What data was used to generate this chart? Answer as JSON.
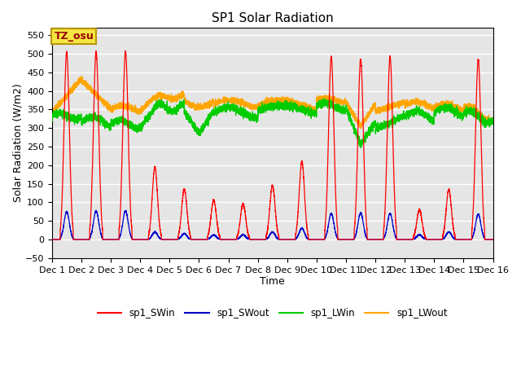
{
  "title": "SP1 Solar Radiation",
  "xlabel": "Time",
  "ylabel": "Solar Radiation (W/m2)",
  "ylim": [
    -50,
    570
  ],
  "xlim": [
    0,
    15
  ],
  "xtick_labels": [
    "Dec 1",
    "Dec 2",
    "Dec 3",
    "Dec 4",
    "Dec 5",
    "Dec 6",
    "Dec 7",
    "Dec 8",
    "Dec 9",
    "Dec 10",
    "Dec 11",
    "Dec 12",
    "Dec 13",
    "Dec 14",
    "Dec 15",
    "Dec 16"
  ],
  "annotation_text": "TZ_osu",
  "annotation_bg": "#f5e642",
  "annotation_border": "#b8960c",
  "colors": {
    "SWin": "#ff0000",
    "SWout": "#0000cc",
    "LWin": "#00cc00",
    "LWout": "#ffa500"
  },
  "legend_labels": [
    "sp1_SWin",
    "sp1_SWout",
    "sp1_LWin",
    "sp1_LWout"
  ],
  "bg_color": "#e5e5e5",
  "grid_color": "#ffffff",
  "peak_heights_sw": [
    505,
    505,
    505,
    195,
    135,
    106,
    96,
    145,
    210,
    492,
    485,
    492,
    80,
    134,
    483
  ],
  "peak_heights_swout": [
    75,
    77,
    77,
    20,
    16,
    12,
    13,
    20,
    30,
    70,
    72,
    70,
    13,
    20,
    68
  ],
  "daylight_start": 0.28,
  "daylight_end": 0.72,
  "n_per_day": 480
}
